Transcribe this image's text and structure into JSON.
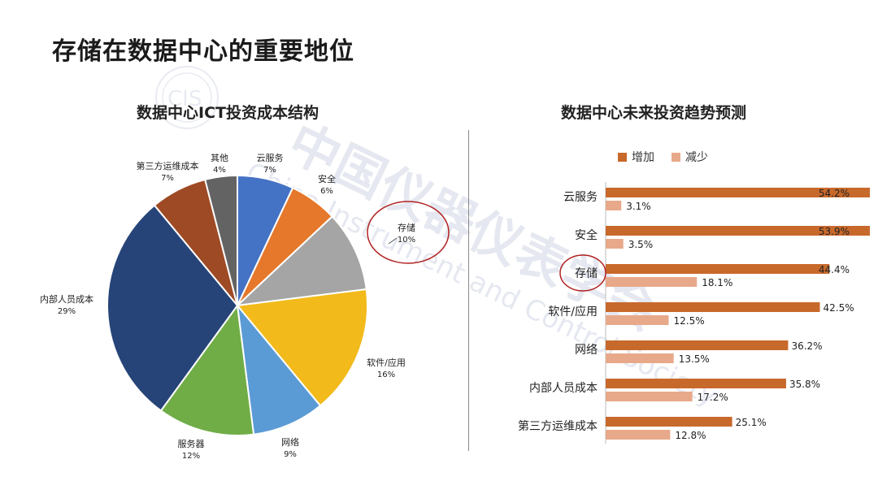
{
  "page": {
    "title": "存储在数据中心的重要地位"
  },
  "colors": {
    "increase": "#C8692C",
    "decrease": "#E8A98A",
    "highlight_circle": "#B22222",
    "watermark": "#9AA7C4"
  },
  "watermark": {
    "cn": "中国仪器仪表学会",
    "en": "China Instrument and Control Society",
    "logo": "CIS"
  },
  "chart_data": [
    {
      "type": "pie",
      "title": "数据中心ICT投资成本结构",
      "slices": [
        {
          "label": "云服务",
          "value": 7,
          "value_label": "7%",
          "color": "#4472C4"
        },
        {
          "label": "安全",
          "value": 6,
          "value_label": "6%",
          "color": "#E5782A"
        },
        {
          "label": "存储",
          "value": 10,
          "value_label": "10%",
          "color": "#A5A5A5"
        },
        {
          "label": "软件/应用",
          "value": 16,
          "value_label": "16%",
          "color": "#F2BA1A"
        },
        {
          "label": "网络",
          "value": 9,
          "value_label": "9%",
          "color": "#5B9BD5"
        },
        {
          "label": "服务器",
          "value": 12,
          "value_label": "12%",
          "color": "#70AD47"
        },
        {
          "label": "内部人员成本",
          "value": 29,
          "value_label": "29%",
          "color": "#264478"
        },
        {
          "label": "第三方运维成本",
          "value": 7,
          "value_label": "7%",
          "color": "#9E4A24"
        },
        {
          "label": "其他",
          "value": 4,
          "value_label": "4%",
          "color": "#636363"
        }
      ],
      "highlight": "存储"
    },
    {
      "type": "bar",
      "orientation": "horizontal",
      "title": "数据中心未来投资趋势预测",
      "categories": [
        "云服务",
        "安全",
        "存储",
        "软件/应用",
        "网络",
        "内部人员成本",
        "第三方运维成本"
      ],
      "series": [
        {
          "name": "增加",
          "values": [
            54.2,
            53.9,
            44.4,
            42.5,
            36.2,
            35.8,
            25.1
          ],
          "labels": [
            "54.2%",
            "53.9%",
            "44.4%",
            "42.5%",
            "36.2%",
            "35.8%",
            "25.1%"
          ]
        },
        {
          "name": "减少",
          "values": [
            3.1,
            3.5,
            18.1,
            12.5,
            13.5,
            17.2,
            12.8
          ],
          "labels": [
            "3.1%",
            "3.5%",
            "18.1%",
            "12.5%",
            "13.5%",
            "17.2%",
            "12.8%"
          ]
        }
      ],
      "xlim": [
        0,
        55
      ],
      "legend": "top",
      "highlight": "存储"
    }
  ]
}
